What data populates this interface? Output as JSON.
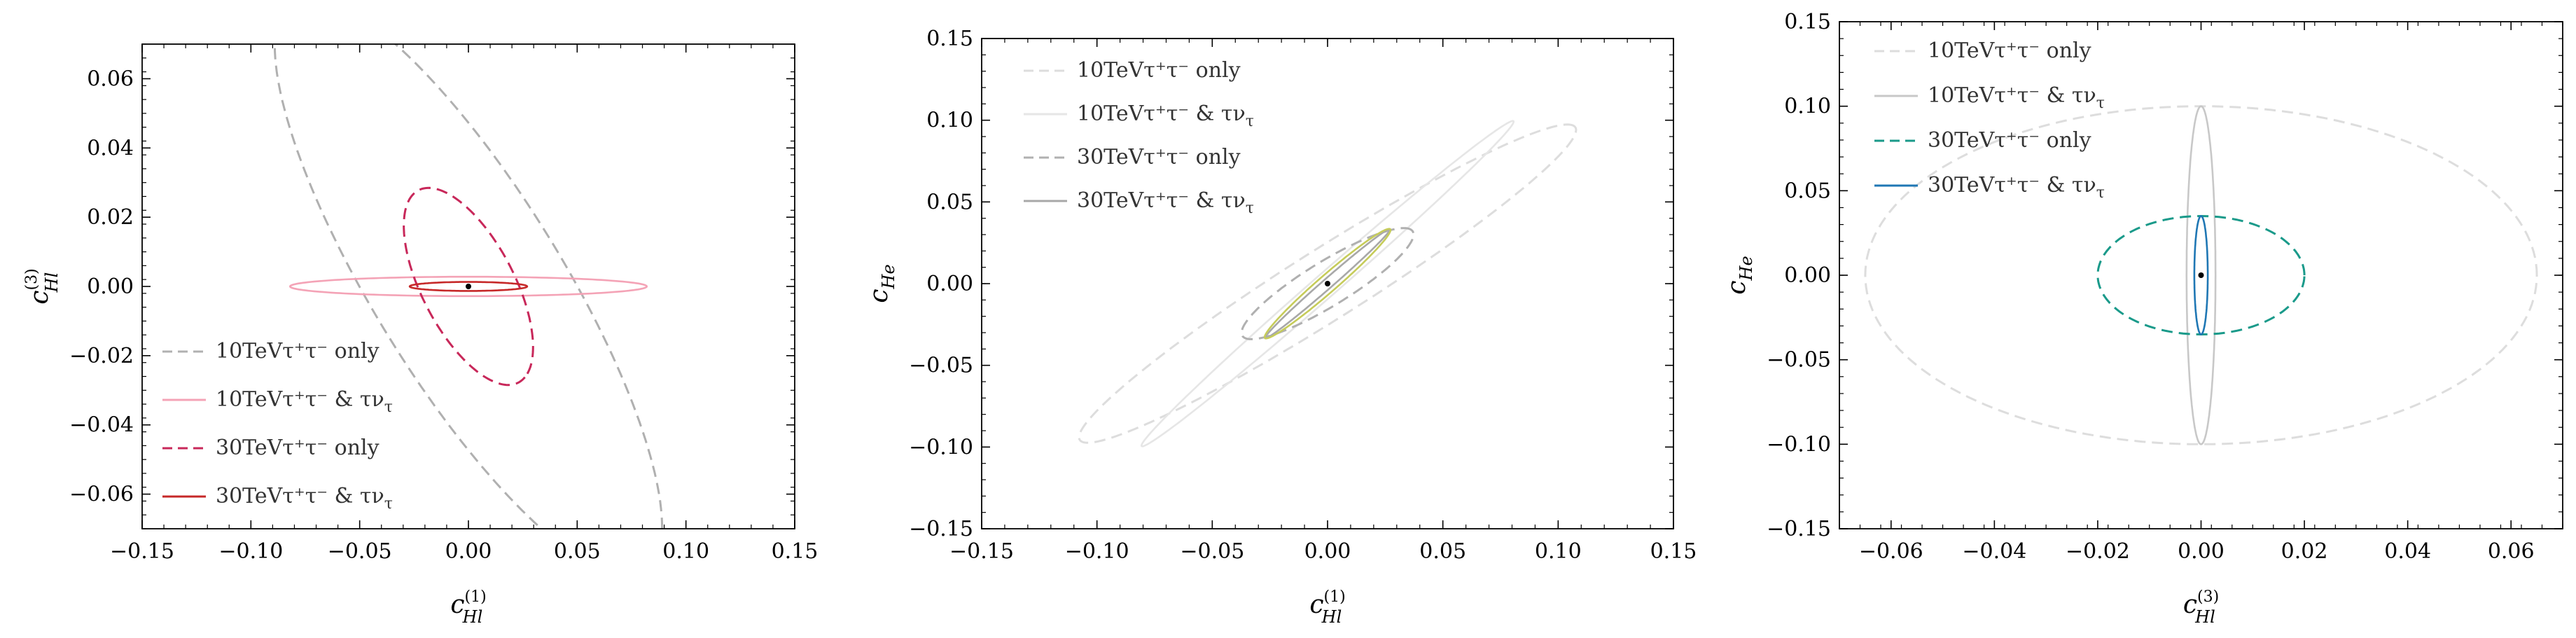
{
  "chart_data": [
    {
      "type": "line",
      "xlabel": "c_Hl^(1)",
      "ylabel": "c_Hl^(3)",
      "xlim": [
        -0.15,
        0.15
      ],
      "ylim": [
        -0.07,
        0.07
      ],
      "xticks": [
        "−0.15",
        "−0.10",
        "−0.05",
        "0.00",
        "0.05",
        "0.10",
        "0.15"
      ],
      "yticks": [
        "−0.06",
        "−0.04",
        "−0.02",
        "0.00",
        "0.02",
        "0.04",
        "0.06"
      ],
      "xtick_values": [
        -0.15,
        -0.1,
        -0.05,
        0.0,
        0.05,
        0.1,
        0.15
      ],
      "ytick_values": [
        -0.06,
        -0.04,
        -0.02,
        0.0,
        0.02,
        0.04,
        0.06
      ],
      "legend_position": "lower-left",
      "series": [
        {
          "name": "10TeVτ⁺τ⁻ only",
          "color": "#b0b0b0",
          "dashed": true,
          "ellipse": {
            "cx": 0.0,
            "cy": 0.0,
            "a": 0.117,
            "b": 0.036,
            "angle_deg": -43
          }
        },
        {
          "name": "10TeVτ⁺τ⁻ & τν_τ",
          "color": "#f4a3b6",
          "dashed": false,
          "ellipse": {
            "cx": 0.0,
            "cy": 0.0,
            "a": 0.082,
            "b": 0.0028,
            "angle_deg": 0
          }
        },
        {
          "name": "30TeVτ⁺τ⁻ only",
          "color": "#c8285a",
          "dashed": true,
          "ellipse": {
            "cx": 0.0,
            "cy": 0.0,
            "a": 0.037,
            "b": 0.018,
            "angle_deg": -43
          }
        },
        {
          "name": "30TeVτ⁺τ⁻ & τν_τ",
          "color": "#c62828",
          "dashed": false,
          "ellipse": {
            "cx": 0.0,
            "cy": 0.0,
            "a": 0.027,
            "b": 0.0013,
            "angle_deg": 0
          }
        }
      ],
      "best_fit": {
        "x": 0.0,
        "y": 0.0
      }
    },
    {
      "type": "line",
      "xlabel": "c_Hl^(1)",
      "ylabel": "c_He",
      "xlim": [
        -0.15,
        0.15
      ],
      "ylim": [
        -0.15,
        0.15
      ],
      "xticks": [
        "−0.15",
        "−0.10",
        "−0.05",
        "0.00",
        "0.05",
        "0.10",
        "0.15"
      ],
      "yticks": [
        "−0.15",
        "−0.10",
        "−0.05",
        "0.00",
        "0.05",
        "0.10",
        "0.15"
      ],
      "xtick_values": [
        -0.15,
        -0.1,
        -0.05,
        0.0,
        0.05,
        0.1,
        0.15
      ],
      "ytick_values": [
        -0.15,
        -0.1,
        -0.05,
        0.0,
        0.05,
        0.1,
        0.15
      ],
      "legend_position": "top-left",
      "series": [
        {
          "name": "10TeVτ⁺τ⁻ only",
          "color": "#dddddd",
          "dashed": true,
          "ellipse": {
            "cx": 0.0,
            "cy": 0.0,
            "a": 0.144,
            "b": 0.019,
            "angle_deg": 42
          }
        },
        {
          "name": "10TeVτ⁺τ⁻ & τν_τ",
          "color": "#e6e6e6",
          "dashed": false,
          "ellipse": {
            "cx": 0.0,
            "cy": 0.0,
            "a": 0.128,
            "b": 0.006,
            "angle_deg": 51
          }
        },
        {
          "name": "30TeVτ⁺τ⁻ only",
          "color": "#b0b0b0",
          "dashed": true,
          "ellipse": {
            "cx": 0.0,
            "cy": 0.0,
            "a": 0.049,
            "b": 0.012,
            "angle_deg": 42
          }
        },
        {
          "name": "30TeVτ⁺τ⁻ & τν_τ",
          "color": "#a8a8a8",
          "dashed": false,
          "ellipse": {
            "cx": 0.0,
            "cy": 0.0,
            "a": 0.043,
            "b": 0.0025,
            "angle_deg": 51
          }
        },
        {
          "name": "",
          "color": "#c6cc5a",
          "dashed": false,
          "ellipse": {
            "cx": 0.0,
            "cy": 0.0,
            "a": 0.043,
            "b": 0.0045,
            "angle_deg": 51
          }
        }
      ],
      "best_fit": {
        "x": 0.0,
        "y": 0.0
      }
    },
    {
      "type": "line",
      "xlabel": "c_Hl^(3)",
      "ylabel": "c_He",
      "xlim": [
        -0.07,
        0.07
      ],
      "ylim": [
        -0.15,
        0.15
      ],
      "xticks": [
        "−0.06",
        "−0.04",
        "−0.02",
        "0.00",
        "0.02",
        "0.04",
        "0.06"
      ],
      "yticks": [
        "−0.15",
        "−0.10",
        "−0.05",
        "0.00",
        "0.05",
        "0.10",
        "0.15"
      ],
      "xtick_values": [
        -0.06,
        -0.04,
        -0.02,
        0.0,
        0.02,
        0.04,
        0.06
      ],
      "ytick_values": [
        -0.15,
        -0.1,
        -0.05,
        0.0,
        0.05,
        0.1,
        0.15
      ],
      "legend_position": "top-left",
      "series": [
        {
          "name": "10TeVτ⁺τ⁻ only",
          "color": "#dddddd",
          "dashed": true,
          "ellipse": {
            "cx": 0.0,
            "cy": 0.0,
            "a": 0.065,
            "b": 0.1,
            "angle_deg": 0
          }
        },
        {
          "name": "10TeVτ⁺τ⁻ & τν_τ",
          "color": "#c8c8c8",
          "dashed": false,
          "ellipse": {
            "cx": 0.0,
            "cy": 0.0,
            "a": 0.0028,
            "b": 0.1,
            "angle_deg": 0
          }
        },
        {
          "name": "30TeVτ⁺τ⁻ only",
          "color": "#1a9a8a",
          "dashed": true,
          "ellipse": {
            "cx": 0.0,
            "cy": 0.0,
            "a": 0.02,
            "b": 0.035,
            "angle_deg": 0
          }
        },
        {
          "name": "30TeVτ⁺τ⁻ & τν_τ",
          "color": "#1f77b4",
          "dashed": false,
          "ellipse": {
            "cx": 0.0,
            "cy": 0.0,
            "a": 0.0013,
            "b": 0.035,
            "angle_deg": 0
          }
        }
      ],
      "best_fit": {
        "x": 0.0,
        "y": 0.0
      }
    }
  ]
}
